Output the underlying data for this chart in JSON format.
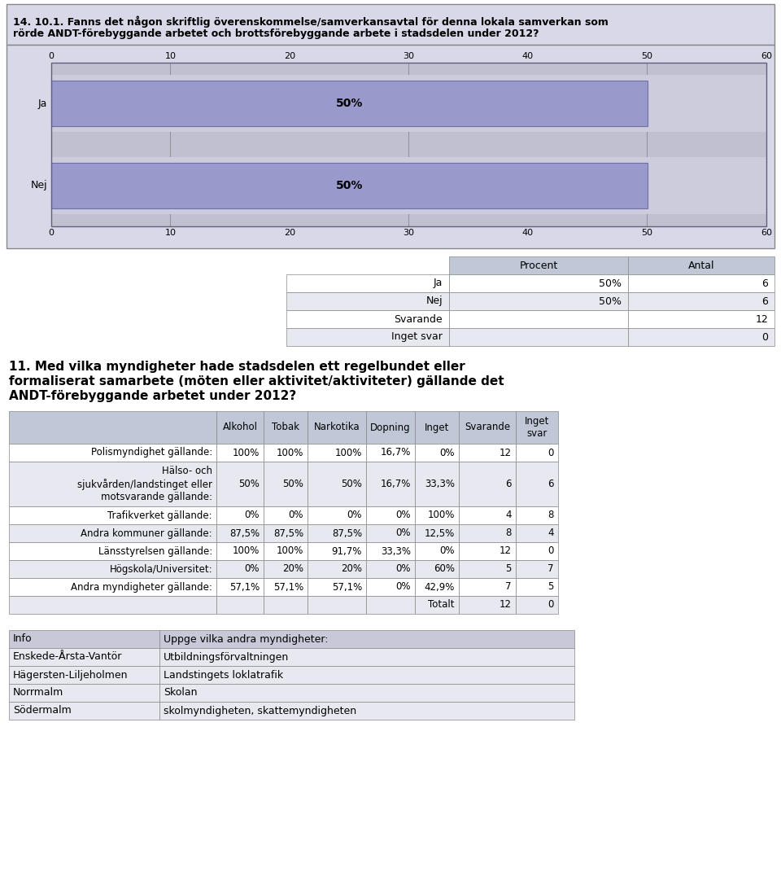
{
  "q14_title_line1": "14. 10.1. Fanns det någon skriftlig överenskommelse/samverkansavtal för denna lokala samverkan som",
  "q14_title_line2": "rörde ANDT-förebyggande arbetet och brottsförebyggande arbete i stadsdelen under 2012?",
  "bar_categories": [
    "Ja",
    "Nej"
  ],
  "bar_values": [
    50,
    50
  ],
  "bar_xlim_max": 60,
  "bar_xticks": [
    0,
    10,
    20,
    30,
    40,
    50,
    60
  ],
  "bar_color": "#9999CC",
  "bar_bg_color": "#CCCCDD",
  "bar_label_pct": [
    "50%",
    "50%"
  ],
  "chart_bg": "#C0C0D0",
  "chart_outer_bg": "#D8D8E8",
  "table1_headers": [
    "Procent",
    "Antal"
  ],
  "table1_rows": [
    [
      "Ja",
      "50%",
      "6"
    ],
    [
      "Nej",
      "50%",
      "6"
    ],
    [
      "Svarande",
      "",
      "12"
    ],
    [
      "Inget svar",
      "",
      "0"
    ]
  ],
  "table1_header_bg": "#C0C8D8",
  "table1_row_bg_white": "#FFFFFF",
  "table1_row_bg_gray": "#E8E8F0",
  "q11_title_line1": "11. Med vilka myndigheter hade stadsdelen ett regelbundet eller",
  "q11_title_line2": "formaliserat samarbete (möten eller aktivitet/aktiviteter) gällande det",
  "q11_title_line3": "ANDT-förebyggande arbetet under 2012?",
  "table2_col_headers": [
    "Alkohol",
    "Tobak",
    "Narkotika",
    "Dopning",
    "Inget",
    "Svarande",
    "Inget\nsvar"
  ],
  "table2_row_headers": [
    "Polismyndighet gällande:",
    "Hälso- och\nsjukvården/landstinget eller\nmotsvarande gällande:",
    "Trafikverket gällande:",
    "Andra kommuner gällande:",
    "Länsstyrelsen gällande:",
    "Högskola/Universitet:",
    "Andra myndigheter gällande:",
    ""
  ],
  "table2_row_heights": [
    22,
    55,
    22,
    22,
    22,
    22,
    22,
    22
  ],
  "table2_data": [
    [
      "100%",
      "100%",
      "100%",
      "16,7%",
      "0%",
      "12",
      "0"
    ],
    [
      "50%",
      "50%",
      "50%",
      "16,7%",
      "33,3%",
      "6",
      "6"
    ],
    [
      "0%",
      "0%",
      "0%",
      "0%",
      "100%",
      "4",
      "8"
    ],
    [
      "87,5%",
      "87,5%",
      "87,5%",
      "0%",
      "12,5%",
      "8",
      "4"
    ],
    [
      "100%",
      "100%",
      "91,7%",
      "33,3%",
      "0%",
      "12",
      "0"
    ],
    [
      "0%",
      "20%",
      "20%",
      "0%",
      "60%",
      "5",
      "7"
    ],
    [
      "57,1%",
      "57,1%",
      "57,1%",
      "0%",
      "42,9%",
      "7",
      "5"
    ],
    [
      "",
      "",
      "",
      "",
      "Totalt",
      "12",
      "0"
    ]
  ],
  "table2_header_bg": "#C0C8D8",
  "table2_row_bg_white": "#FFFFFF",
  "table2_row_bg_gray": "#E8E8F0",
  "info_table_headers": [
    "Info",
    "Uppge vilka andra myndigheter:"
  ],
  "info_table_rows": [
    [
      "Enskede-Årsta-Vantör",
      "Utbildningsförvaltningen"
    ],
    [
      "Hägersten-Liljeholmen",
      "Landstingets loklatrafik"
    ],
    [
      "Norrmalm",
      "Skolan"
    ],
    [
      "Södermalm",
      "skolmyndigheten, skattemyndigheten"
    ]
  ],
  "info_header_bg": "#C8C8D8",
  "info_row_bg": "#E8E8F0",
  "page_bg": "#FFFFFF"
}
